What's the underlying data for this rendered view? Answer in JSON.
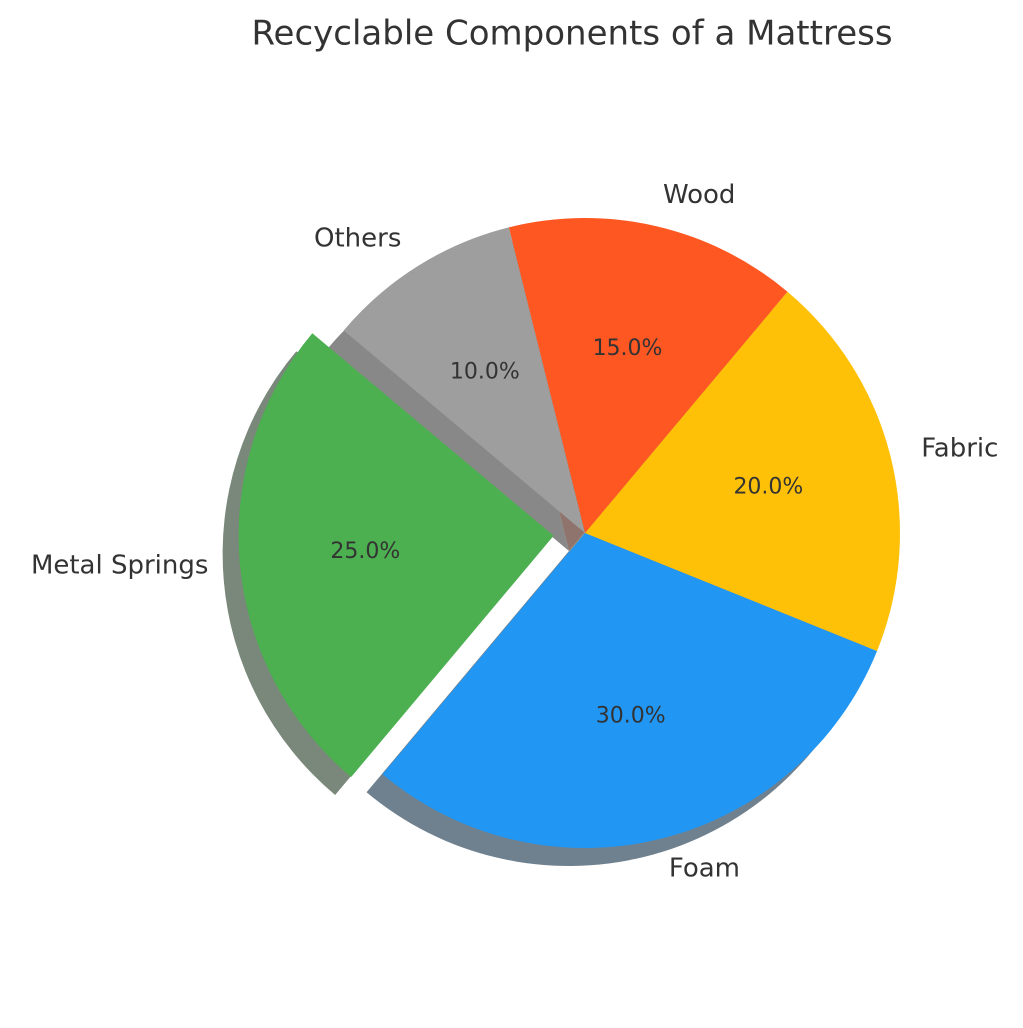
{
  "chart_data": {
    "type": "pie",
    "title": "Recyclable Components of a Mattress",
    "categories": [
      "Metal Springs",
      "Foam",
      "Fabric",
      "Wood",
      "Others"
    ],
    "values": [
      25,
      30,
      20,
      15,
      10
    ],
    "value_labels": [
      "25.0%",
      "30.0%",
      "20.0%",
      "15.0%",
      "10.0%"
    ],
    "colors": [
      "#4caf50",
      "#2196f3",
      "#ffc107",
      "#ff5722",
      "#9e9e9e"
    ],
    "explode": [
      0.1,
      0,
      0,
      0,
      0
    ],
    "shadow": true
  }
}
